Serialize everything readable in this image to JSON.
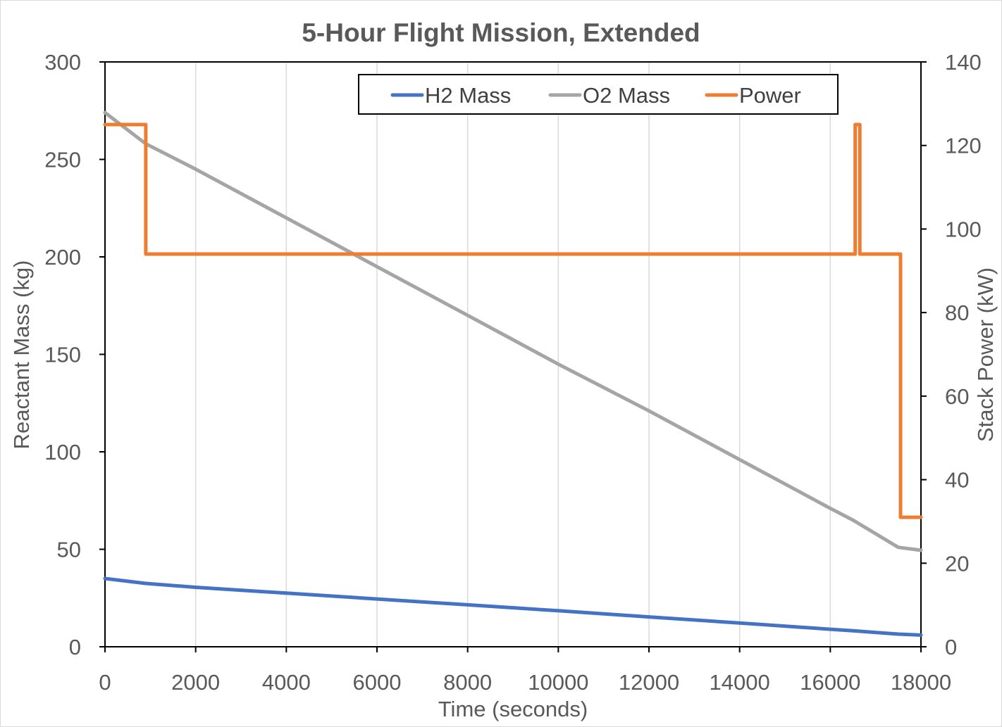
{
  "chart_data": {
    "type": "line",
    "title": "5-Hour Flight Mission, Extended",
    "xlabel": "Time (seconds)",
    "ylabel": "Reactant Mass (kg)",
    "y2label": "Stack Power (kW)",
    "xlim": [
      0,
      18000
    ],
    "ylim": [
      0,
      300
    ],
    "y2lim": [
      0,
      140
    ],
    "x_ticks": [
      0,
      2000,
      4000,
      6000,
      8000,
      10000,
      12000,
      14000,
      16000,
      18000
    ],
    "y_ticks": [
      0,
      50,
      100,
      150,
      200,
      250,
      300
    ],
    "y2_ticks": [
      0,
      20,
      40,
      60,
      80,
      100,
      120,
      140
    ],
    "grid": "vertical",
    "legend_position": "top-center",
    "series": [
      {
        "name": "H2 Mass",
        "axis": "left",
        "color": "#4472c4",
        "x": [
          0,
          900,
          2000,
          4000,
          6000,
          8000,
          10000,
          12000,
          14000,
          16000,
          16500,
          17500,
          18000
        ],
        "y": [
          35,
          32.5,
          30.5,
          27.5,
          24.5,
          21.5,
          18.5,
          15.3,
          12.2,
          9,
          8.2,
          6.5,
          6
        ]
      },
      {
        "name": "O2 Mass",
        "axis": "left",
        "color": "#a5a5a5",
        "x": [
          0,
          900,
          2000,
          4000,
          6000,
          8000,
          10000,
          12000,
          14000,
          16000,
          16500,
          17500,
          18000
        ],
        "y": [
          274,
          258,
          245,
          220,
          195,
          170,
          145,
          121,
          96,
          71,
          65,
          51,
          49.5
        ]
      },
      {
        "name": "Power",
        "axis": "right",
        "color": "#ed7d31",
        "x": [
          0,
          900,
          900,
          16550,
          16550,
          16650,
          16650,
          17550,
          17550,
          18000
        ],
        "y": [
          125,
          125,
          94,
          94,
          125,
          125,
          94,
          94,
          31,
          31
        ]
      }
    ]
  }
}
